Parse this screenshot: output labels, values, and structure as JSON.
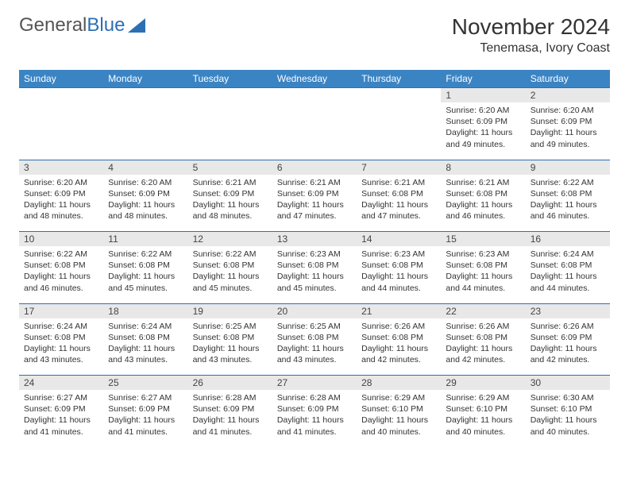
{
  "logo": {
    "text1": "General",
    "text2": "Blue"
  },
  "title": "November 2024",
  "location": "Tenemasa, Ivory Coast",
  "colors": {
    "header_bg": "#3b84c4",
    "header_fg": "#ffffff",
    "daynum_bg": "#e8e8e8",
    "border": "#2c6fb5",
    "logo_gray": "#555555",
    "logo_blue": "#2c6fb5"
  },
  "day_headers": [
    "Sunday",
    "Monday",
    "Tuesday",
    "Wednesday",
    "Thursday",
    "Friday",
    "Saturday"
  ],
  "weeks": [
    {
      "nums": [
        "",
        "",
        "",
        "",
        "",
        "1",
        "2"
      ],
      "cells": [
        null,
        null,
        null,
        null,
        null,
        {
          "sunrise": "Sunrise: 6:20 AM",
          "sunset": "Sunset: 6:09 PM",
          "daylight": "Daylight: 11 hours and 49 minutes."
        },
        {
          "sunrise": "Sunrise: 6:20 AM",
          "sunset": "Sunset: 6:09 PM",
          "daylight": "Daylight: 11 hours and 49 minutes."
        }
      ]
    },
    {
      "nums": [
        "3",
        "4",
        "5",
        "6",
        "7",
        "8",
        "9"
      ],
      "cells": [
        {
          "sunrise": "Sunrise: 6:20 AM",
          "sunset": "Sunset: 6:09 PM",
          "daylight": "Daylight: 11 hours and 48 minutes."
        },
        {
          "sunrise": "Sunrise: 6:20 AM",
          "sunset": "Sunset: 6:09 PM",
          "daylight": "Daylight: 11 hours and 48 minutes."
        },
        {
          "sunrise": "Sunrise: 6:21 AM",
          "sunset": "Sunset: 6:09 PM",
          "daylight": "Daylight: 11 hours and 48 minutes."
        },
        {
          "sunrise": "Sunrise: 6:21 AM",
          "sunset": "Sunset: 6:09 PM",
          "daylight": "Daylight: 11 hours and 47 minutes."
        },
        {
          "sunrise": "Sunrise: 6:21 AM",
          "sunset": "Sunset: 6:08 PM",
          "daylight": "Daylight: 11 hours and 47 minutes."
        },
        {
          "sunrise": "Sunrise: 6:21 AM",
          "sunset": "Sunset: 6:08 PM",
          "daylight": "Daylight: 11 hours and 46 minutes."
        },
        {
          "sunrise": "Sunrise: 6:22 AM",
          "sunset": "Sunset: 6:08 PM",
          "daylight": "Daylight: 11 hours and 46 minutes."
        }
      ]
    },
    {
      "nums": [
        "10",
        "11",
        "12",
        "13",
        "14",
        "15",
        "16"
      ],
      "cells": [
        {
          "sunrise": "Sunrise: 6:22 AM",
          "sunset": "Sunset: 6:08 PM",
          "daylight": "Daylight: 11 hours and 46 minutes."
        },
        {
          "sunrise": "Sunrise: 6:22 AM",
          "sunset": "Sunset: 6:08 PM",
          "daylight": "Daylight: 11 hours and 45 minutes."
        },
        {
          "sunrise": "Sunrise: 6:22 AM",
          "sunset": "Sunset: 6:08 PM",
          "daylight": "Daylight: 11 hours and 45 minutes."
        },
        {
          "sunrise": "Sunrise: 6:23 AM",
          "sunset": "Sunset: 6:08 PM",
          "daylight": "Daylight: 11 hours and 45 minutes."
        },
        {
          "sunrise": "Sunrise: 6:23 AM",
          "sunset": "Sunset: 6:08 PM",
          "daylight": "Daylight: 11 hours and 44 minutes."
        },
        {
          "sunrise": "Sunrise: 6:23 AM",
          "sunset": "Sunset: 6:08 PM",
          "daylight": "Daylight: 11 hours and 44 minutes."
        },
        {
          "sunrise": "Sunrise: 6:24 AM",
          "sunset": "Sunset: 6:08 PM",
          "daylight": "Daylight: 11 hours and 44 minutes."
        }
      ]
    },
    {
      "nums": [
        "17",
        "18",
        "19",
        "20",
        "21",
        "22",
        "23"
      ],
      "cells": [
        {
          "sunrise": "Sunrise: 6:24 AM",
          "sunset": "Sunset: 6:08 PM",
          "daylight": "Daylight: 11 hours and 43 minutes."
        },
        {
          "sunrise": "Sunrise: 6:24 AM",
          "sunset": "Sunset: 6:08 PM",
          "daylight": "Daylight: 11 hours and 43 minutes."
        },
        {
          "sunrise": "Sunrise: 6:25 AM",
          "sunset": "Sunset: 6:08 PM",
          "daylight": "Daylight: 11 hours and 43 minutes."
        },
        {
          "sunrise": "Sunrise: 6:25 AM",
          "sunset": "Sunset: 6:08 PM",
          "daylight": "Daylight: 11 hours and 43 minutes."
        },
        {
          "sunrise": "Sunrise: 6:26 AM",
          "sunset": "Sunset: 6:08 PM",
          "daylight": "Daylight: 11 hours and 42 minutes."
        },
        {
          "sunrise": "Sunrise: 6:26 AM",
          "sunset": "Sunset: 6:08 PM",
          "daylight": "Daylight: 11 hours and 42 minutes."
        },
        {
          "sunrise": "Sunrise: 6:26 AM",
          "sunset": "Sunset: 6:09 PM",
          "daylight": "Daylight: 11 hours and 42 minutes."
        }
      ]
    },
    {
      "nums": [
        "24",
        "25",
        "26",
        "27",
        "28",
        "29",
        "30"
      ],
      "cells": [
        {
          "sunrise": "Sunrise: 6:27 AM",
          "sunset": "Sunset: 6:09 PM",
          "daylight": "Daylight: 11 hours and 41 minutes."
        },
        {
          "sunrise": "Sunrise: 6:27 AM",
          "sunset": "Sunset: 6:09 PM",
          "daylight": "Daylight: 11 hours and 41 minutes."
        },
        {
          "sunrise": "Sunrise: 6:28 AM",
          "sunset": "Sunset: 6:09 PM",
          "daylight": "Daylight: 11 hours and 41 minutes."
        },
        {
          "sunrise": "Sunrise: 6:28 AM",
          "sunset": "Sunset: 6:09 PM",
          "daylight": "Daylight: 11 hours and 41 minutes."
        },
        {
          "sunrise": "Sunrise: 6:29 AM",
          "sunset": "Sunset: 6:10 PM",
          "daylight": "Daylight: 11 hours and 40 minutes."
        },
        {
          "sunrise": "Sunrise: 6:29 AM",
          "sunset": "Sunset: 6:10 PM",
          "daylight": "Daylight: 11 hours and 40 minutes."
        },
        {
          "sunrise": "Sunrise: 6:30 AM",
          "sunset": "Sunset: 6:10 PM",
          "daylight": "Daylight: 11 hours and 40 minutes."
        }
      ]
    }
  ]
}
